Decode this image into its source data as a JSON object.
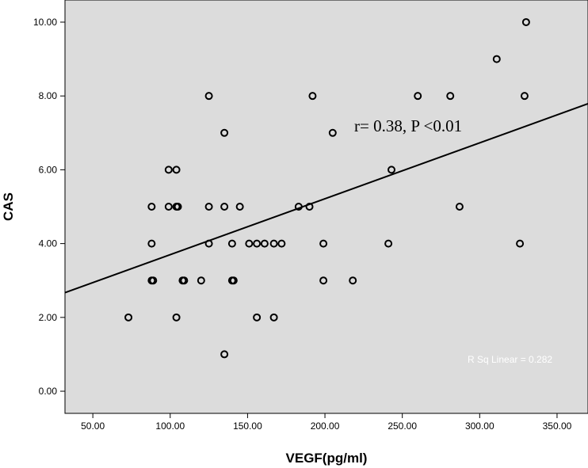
{
  "chart_data": {
    "type": "scatter",
    "xlabel": "VEGF(pg/ml)",
    "ylabel": "CAS",
    "xlim": [
      32,
      370
    ],
    "ylim": [
      -0.6,
      10.6
    ],
    "x_ticks": [
      50,
      100,
      150,
      200,
      250,
      300,
      350
    ],
    "x_tick_labels": [
      "50.00",
      "100.00",
      "150.00",
      "200.00",
      "250.00",
      "300.00",
      "350.00"
    ],
    "y_ticks": [
      0,
      2,
      4,
      6,
      8,
      10
    ],
    "y_tick_labels": [
      "0.00",
      "2.00",
      "4.00",
      "6.00",
      "8.00",
      "10.00"
    ],
    "grid": false,
    "background_color": "#dcdcdc",
    "marker": "open-circle",
    "points": [
      {
        "x": 73,
        "y": 2
      },
      {
        "x": 88,
        "y": 5
      },
      {
        "x": 88,
        "y": 4
      },
      {
        "x": 88,
        "y": 3
      },
      {
        "x": 89,
        "y": 3
      },
      {
        "x": 99,
        "y": 6
      },
      {
        "x": 104,
        "y": 6
      },
      {
        "x": 99,
        "y": 5
      },
      {
        "x": 104,
        "y": 5
      },
      {
        "x": 105,
        "y": 5
      },
      {
        "x": 104,
        "y": 2
      },
      {
        "x": 108,
        "y": 3
      },
      {
        "x": 109,
        "y": 3
      },
      {
        "x": 120,
        "y": 3
      },
      {
        "x": 125,
        "y": 8
      },
      {
        "x": 125,
        "y": 5
      },
      {
        "x": 125,
        "y": 4
      },
      {
        "x": 135,
        "y": 7
      },
      {
        "x": 135,
        "y": 5
      },
      {
        "x": 135,
        "y": 1
      },
      {
        "x": 140,
        "y": 4
      },
      {
        "x": 140,
        "y": 3
      },
      {
        "x": 141,
        "y": 3
      },
      {
        "x": 145,
        "y": 5
      },
      {
        "x": 151,
        "y": 4
      },
      {
        "x": 156,
        "y": 4
      },
      {
        "x": 156,
        "y": 2
      },
      {
        "x": 161,
        "y": 4
      },
      {
        "x": 167,
        "y": 4
      },
      {
        "x": 167,
        "y": 2
      },
      {
        "x": 172,
        "y": 4
      },
      {
        "x": 183,
        "y": 5
      },
      {
        "x": 190,
        "y": 5
      },
      {
        "x": 192,
        "y": 8
      },
      {
        "x": 199,
        "y": 4
      },
      {
        "x": 199,
        "y": 3
      },
      {
        "x": 205,
        "y": 7
      },
      {
        "x": 218,
        "y": 3
      },
      {
        "x": 241,
        "y": 4
      },
      {
        "x": 243,
        "y": 6
      },
      {
        "x": 260,
        "y": 8
      },
      {
        "x": 281,
        "y": 8
      },
      {
        "x": 287,
        "y": 5
      },
      {
        "x": 311,
        "y": 9
      },
      {
        "x": 326,
        "y": 4
      },
      {
        "x": 329,
        "y": 8
      },
      {
        "x": 330,
        "y": 10
      }
    ],
    "fit_line": {
      "x": [
        32,
        370
      ],
      "y": [
        2.67,
        7.79
      ]
    },
    "annotation": "r= 0.38, P <0.01",
    "r_squared_label": "R Sq Linear = 0.282"
  }
}
